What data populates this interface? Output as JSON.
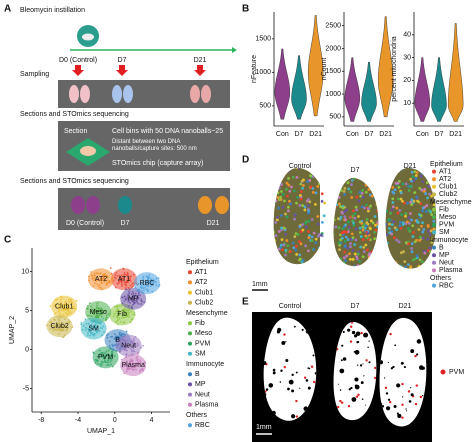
{
  "panel_labels": {
    "a": "A",
    "b": "B",
    "c": "C",
    "d": "D",
    "e": "E"
  },
  "panel_a": {
    "treatment": "Bleomycin instillation",
    "timepoints": [
      "D0 (Control)",
      "D7",
      "D21"
    ],
    "sampling": "Sampling",
    "sequencing_1": "Sections and STOmics sequencing",
    "chip": {
      "section": "Section",
      "cell_bins": "Cell bins with 50 DNA nanoballs~25",
      "distance": "Distant between two DNA nanoballs/capture sites: 500 nm",
      "chip": "STOmics chip (capture array)"
    },
    "sequencing_2": "Sections and STOmics sequencing",
    "samples": [
      "D0 (Control)",
      "D7",
      "D21"
    ]
  },
  "chart_data": [
    {
      "type": "violin",
      "ylabel": "nFeature",
      "categories": [
        "Con",
        "D7",
        "D21"
      ],
      "colors": [
        "#8e3f8c",
        "#1c8a8c",
        "#e8952a"
      ],
      "min": [
        300,
        300,
        350
      ],
      "median": [
        700,
        600,
        1000
      ],
      "max": [
        1350,
        1250,
        1850
      ],
      "ylim": [
        200,
        1900
      ],
      "yticks": [
        500,
        1000,
        1500
      ]
    },
    {
      "type": "violin",
      "ylabel": "nCount",
      "categories": [
        "Con",
        "D7",
        "D21"
      ],
      "colors": [
        "#8e3f8c",
        "#1c8a8c",
        "#e8952a"
      ],
      "min": [
        400,
        400,
        500
      ],
      "median": [
        900,
        800,
        1300
      ],
      "max": [
        1800,
        1700,
        2700
      ],
      "ylim": [
        300,
        2800
      ],
      "yticks": [
        500,
        1000,
        1500,
        2000,
        2500
      ]
    },
    {
      "type": "violin",
      "ylabel": "percent mitochondria",
      "categories": [
        "Con",
        "D7",
        "D21"
      ],
      "colors": [
        "#8e3f8c",
        "#1c8a8c",
        "#e8952a"
      ],
      "min": [
        2,
        2,
        2
      ],
      "median": [
        10,
        9,
        9
      ],
      "max": [
        30,
        30,
        45
      ],
      "ylim": [
        0,
        50
      ],
      "yticks": [
        10,
        20,
        30,
        40
      ]
    },
    {
      "type": "scatter",
      "xlabel": "UMAP_1",
      "ylabel": "UMAP_2",
      "xlim": [
        -9,
        6
      ],
      "ylim": [
        -8,
        13
      ],
      "xticks": [
        -8,
        -4,
        0,
        4
      ],
      "yticks": [
        -5,
        0,
        5,
        10
      ],
      "legend_position": "right",
      "groups": [
        {
          "name": "Epithelium",
          "series": [
            {
              "name": "AT1",
              "color": "#e8432e",
              "x": 1,
              "y": 9
            },
            {
              "name": "AT2",
              "color": "#f28e2b",
              "x": -1.5,
              "y": 9
            },
            {
              "name": "Club1",
              "color": "#e9c12c",
              "x": -5.5,
              "y": 5.5
            },
            {
              "name": "Club2",
              "color": "#c9b54a",
              "x": -6,
              "y": 3
            }
          ]
        },
        {
          "name": "Mesenchyme",
          "series": [
            {
              "name": "Fib",
              "color": "#8cc63f",
              "x": 0.8,
              "y": 4.5
            },
            {
              "name": "Meso",
              "color": "#4daf4a",
              "x": -1.8,
              "y": 4.8
            },
            {
              "name": "PVM",
              "color": "#2ca25f",
              "x": -1,
              "y": -1
            },
            {
              "name": "SM",
              "color": "#41b6c4",
              "x": -2.3,
              "y": 2.7
            }
          ]
        },
        {
          "name": "Immunocyte",
          "series": [
            {
              "name": "B",
              "color": "#3a7fc1",
              "x": 0.3,
              "y": 1.2
            },
            {
              "name": "MP",
              "color": "#6a51a3",
              "x": 2,
              "y": 6.5
            },
            {
              "name": "Neut",
              "color": "#9e7ac0",
              "x": 1.5,
              "y": 0.5
            },
            {
              "name": "Plasma",
              "color": "#c77cbb",
              "x": 2,
              "y": -2
            }
          ]
        },
        {
          "name": "Others",
          "series": [
            {
              "name": "RBC",
              "color": "#4fa3e0",
              "x": 3.5,
              "y": 8.5
            }
          ]
        }
      ]
    }
  ],
  "panel_d": {
    "labels": [
      "Control",
      "D7",
      "D21"
    ],
    "scale": "1mm"
  },
  "panel_e": {
    "labels": [
      "Control",
      "D7",
      "D21"
    ],
    "legend": "PVM",
    "legend_color": "#e02020",
    "scale": "1mm"
  }
}
